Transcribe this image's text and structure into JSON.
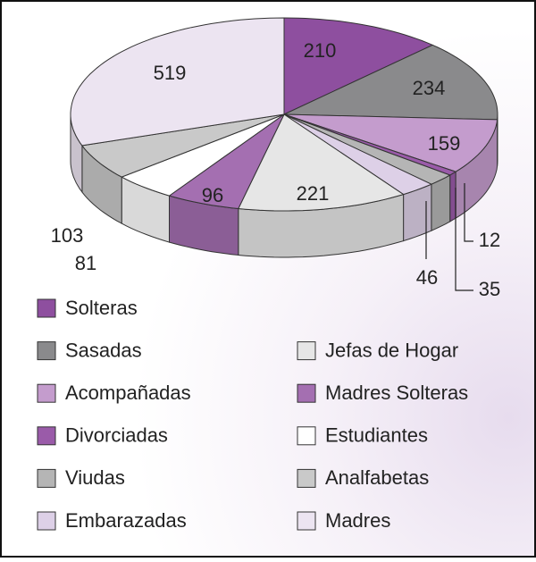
{
  "chart_data": {
    "type": "pie3d",
    "categories": [
      "Solteras",
      "Sasadas",
      "Acompañadas",
      "Divorciadas",
      "Viudas",
      "Embarazadas",
      "Jefas de Hogar",
      "Madres Solteras",
      "Estudiantes",
      "Analfabetas",
      "Madres"
    ],
    "values": [
      210,
      234,
      159,
      12,
      35,
      46,
      221,
      96,
      81,
      103,
      519
    ],
    "colors": [
      "#8e4f9f",
      "#8a8a8c",
      "#c49ccd",
      "#9a5ba9",
      "#b5b5b5",
      "#ddd0e7",
      "#e6e6e6",
      "#a46fb1",
      "#ffffff",
      "#c9c9c9",
      "#ece4f1"
    ]
  }
}
